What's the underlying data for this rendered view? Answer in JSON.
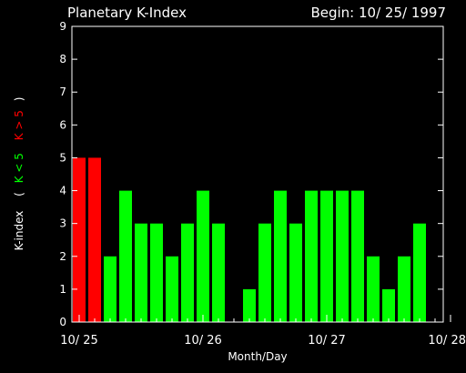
{
  "chart_data": {
    "type": "bar",
    "title": "Planetary K-Index",
    "begin_label": "Begin: 10/ 25/ 1997",
    "xlabel": "Month/Day",
    "ylabel": {
      "prefix": "K-index",
      "open_paren": "(",
      "low_text": "K < 5",
      "high_text": "K > 5",
      "close_paren": ")"
    },
    "ylim": [
      0,
      9
    ],
    "yticks": [
      "0",
      "1",
      "2",
      "3",
      "4",
      "5",
      "6",
      "7",
      "8",
      "9"
    ],
    "xticks": [
      "10/ 25",
      "10/ 26",
      "10/ 27",
      "10/ 28"
    ],
    "bars_per_day": 8,
    "values": [
      5,
      5,
      2,
      4,
      3,
      3,
      2,
      3,
      4,
      3,
      0,
      1,
      3,
      4,
      3,
      4,
      4,
      4,
      4,
      2,
      1,
      2,
      3
    ],
    "threshold": 5,
    "colors": {
      "low": "#00ff00",
      "high": "#ff0000",
      "axis": "#ffffff",
      "background": "#000000"
    }
  }
}
